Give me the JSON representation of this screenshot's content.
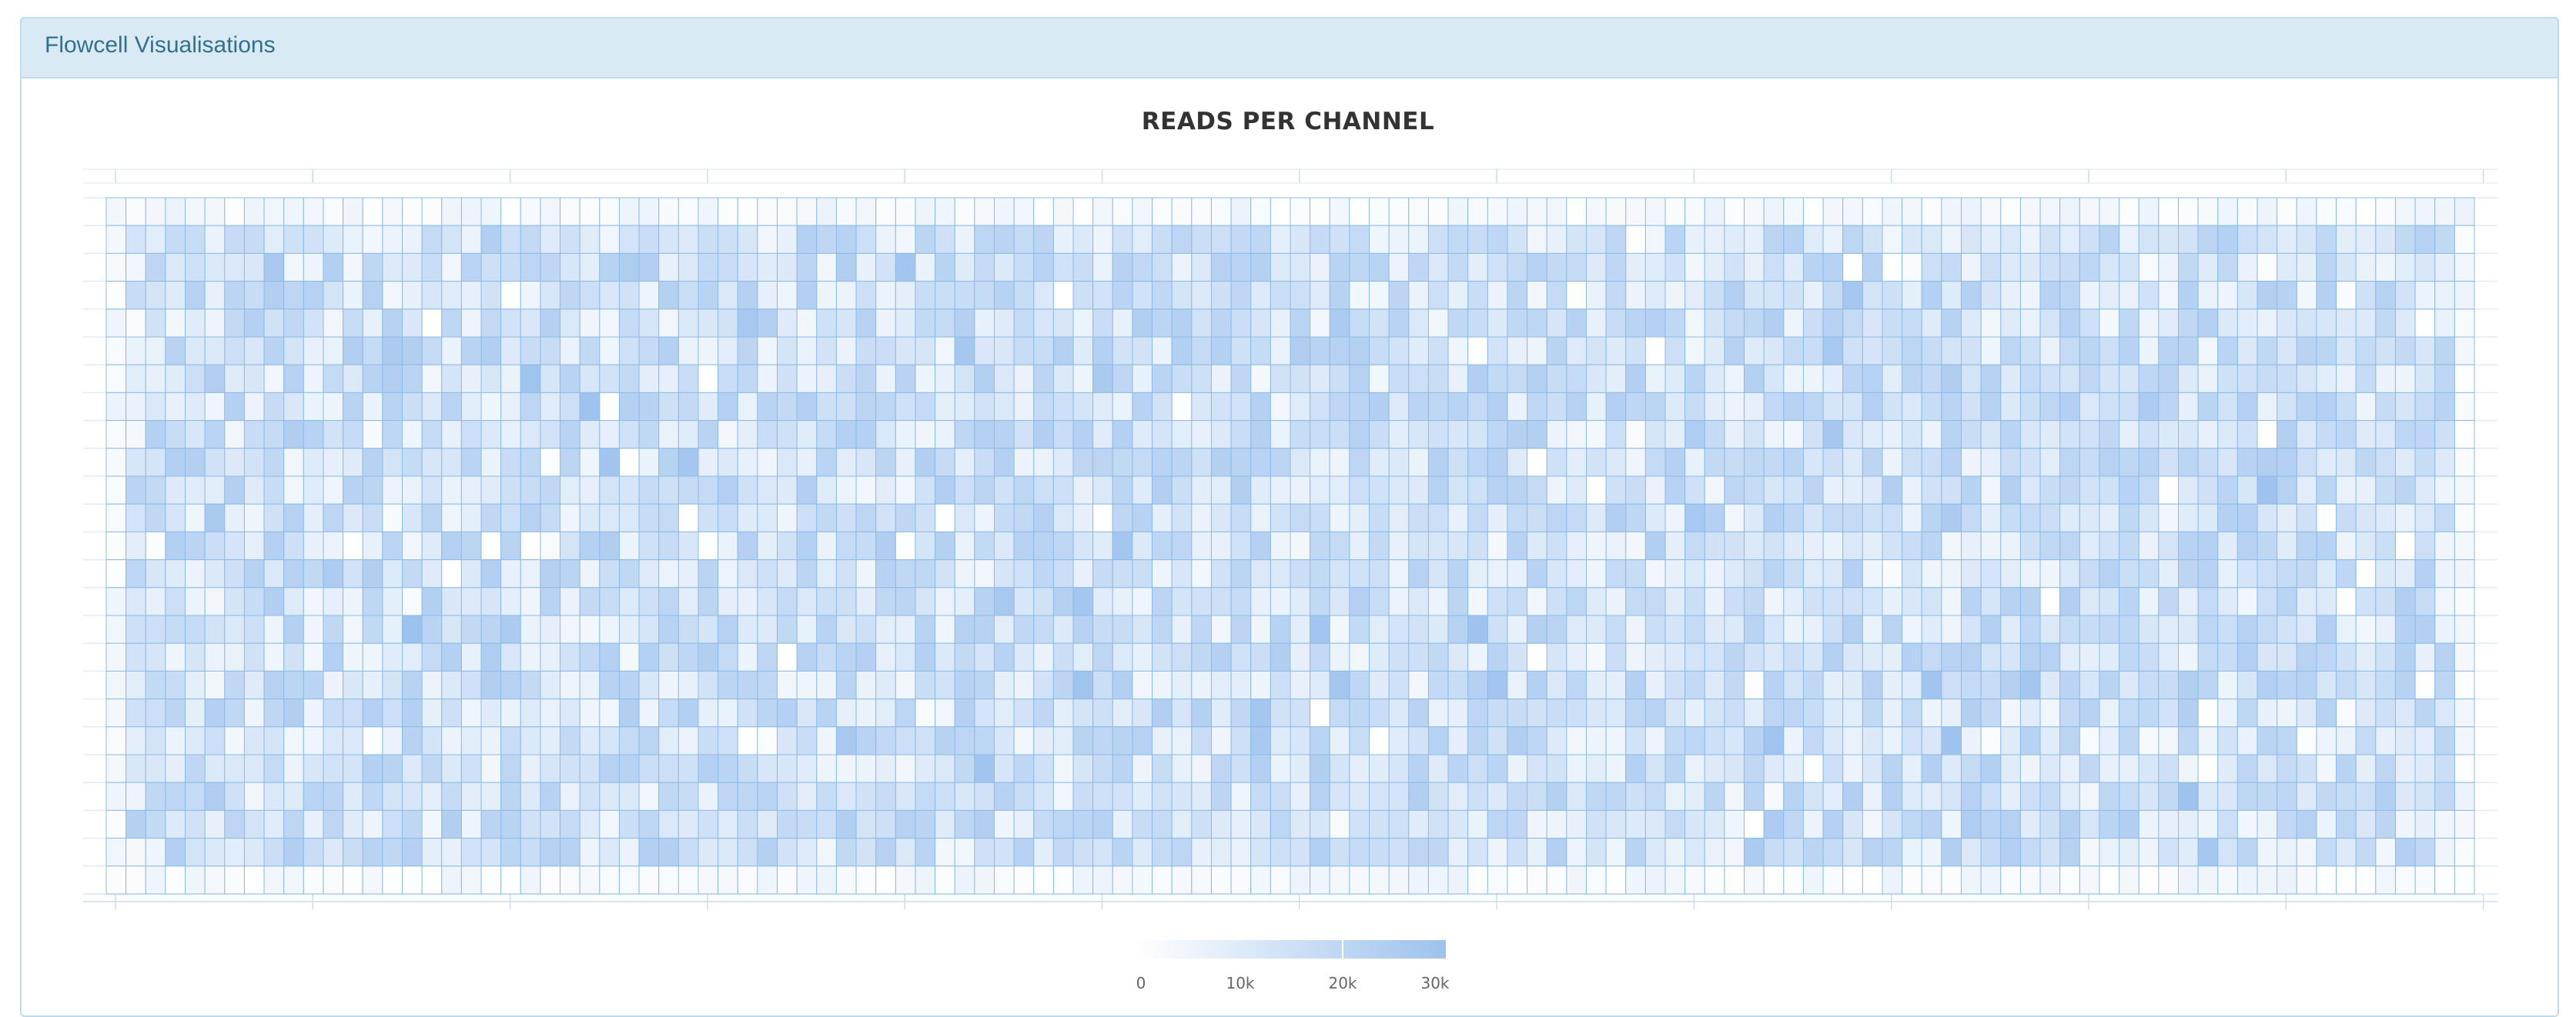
{
  "panel": {
    "title": "Flowcell Visualisations"
  },
  "chart_data": {
    "type": "heatmap",
    "title": "READS PER CHANNEL",
    "columns": 120,
    "rows": 25,
    "legend": {
      "min": 0,
      "max": 30000,
      "tick_labels": [
        "0",
        "10k",
        "20k",
        "30k"
      ],
      "colors": [
        "#ffffff",
        "#9ec2ee"
      ]
    },
    "value_description": "per-channel read counts, mostly in the 5k–25k range"
  }
}
